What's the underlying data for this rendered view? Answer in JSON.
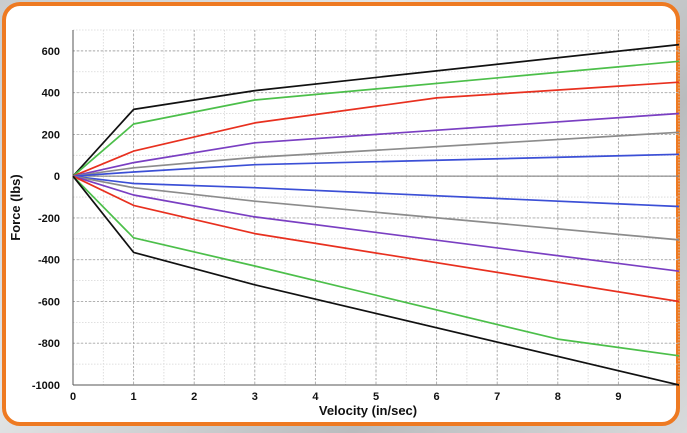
{
  "chart_data": {
    "type": "line",
    "xlabel": "Velocity (in/sec)",
    "ylabel": "Force (lbs)",
    "xlim": [
      0,
      10
    ],
    "ylim": [
      -1000,
      700
    ],
    "xticks": [
      0,
      1,
      2,
      3,
      4,
      5,
      6,
      7,
      8,
      9
    ],
    "yticks": [
      600,
      400,
      200,
      0,
      -200,
      -400,
      -600,
      -800,
      -1000
    ],
    "x_minor_step": 0.5,
    "y_minor_step": 100,
    "grid": true,
    "series": [
      {
        "color": "#111111",
        "x": [
          0,
          1,
          3,
          10
        ],
        "y": [
          0,
          320,
          410,
          630
        ]
      },
      {
        "color": "#4cbf4a",
        "x": [
          0,
          1,
          3,
          10
        ],
        "y": [
          0,
          250,
          365,
          550
        ]
      },
      {
        "color": "#e8301f",
        "x": [
          0,
          1,
          3,
          6,
          10
        ],
        "y": [
          0,
          120,
          255,
          375,
          450
        ]
      },
      {
        "color": "#7a3fc2",
        "x": [
          0,
          1,
          3,
          10
        ],
        "y": [
          0,
          65,
          160,
          300
        ]
      },
      {
        "color": "#8c8c8c",
        "x": [
          0,
          1,
          3,
          10
        ],
        "y": [
          0,
          40,
          90,
          210
        ]
      },
      {
        "color": "#3b4fd6",
        "x": [
          0,
          1,
          3,
          10
        ],
        "y": [
          0,
          20,
          55,
          105
        ]
      },
      {
        "color": "#3b4fd6",
        "x": [
          0,
          1,
          3,
          10
        ],
        "y": [
          0,
          -35,
          -55,
          -145
        ]
      },
      {
        "color": "#8c8c8c",
        "x": [
          0,
          1,
          3,
          10
        ],
        "y": [
          0,
          -55,
          -120,
          -305
        ]
      },
      {
        "color": "#7a3fc2",
        "x": [
          0,
          1,
          3,
          10
        ],
        "y": [
          0,
          -90,
          -195,
          -455
        ]
      },
      {
        "color": "#e8301f",
        "x": [
          0,
          1,
          3,
          10
        ],
        "y": [
          0,
          -140,
          -275,
          -600
        ]
      },
      {
        "color": "#4cbf4a",
        "x": [
          0,
          1,
          3,
          8,
          10
        ],
        "y": [
          0,
          -295,
          -430,
          -780,
          -860
        ]
      },
      {
        "color": "#111111",
        "x": [
          0,
          1,
          3,
          10
        ],
        "y": [
          0,
          -365,
          -520,
          -1000
        ]
      }
    ]
  }
}
